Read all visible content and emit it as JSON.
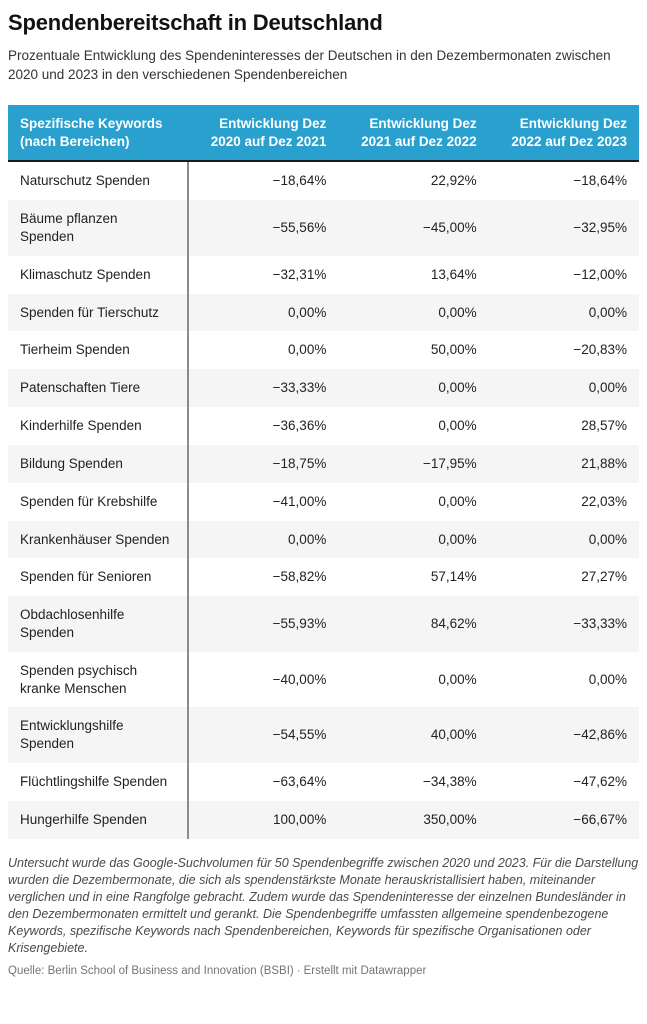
{
  "header": {
    "title": "Spendenbereitschaft in Deutschland",
    "subtitle": "Prozentuale Entwicklung des Spendeninteresses der Deutschen in den Dezembermonaten zwischen 2020 und 2023 in den verschiedenen Spendenbereichen"
  },
  "table": {
    "columns": [
      "Spezifische Keywords (nach Bereichen)",
      "Entwicklung Dez 2020 auf Dez 2021",
      "Entwicklung Dez 2021 auf Dez 2022",
      "Entwicklung Dez 2022 auf Dez 2023"
    ],
    "rows": [
      [
        "Naturschutz Spenden",
        "−18,64%",
        "22,92%",
        "−18,64%"
      ],
      [
        "Bäume pflanzen Spenden",
        "−55,56%",
        "−45,00%",
        "−32,95%"
      ],
      [
        "Klimaschutz Spenden",
        "−32,31%",
        "13,64%",
        "−12,00%"
      ],
      [
        "Spenden für Tierschutz",
        "0,00%",
        "0,00%",
        "0,00%"
      ],
      [
        "Tierheim Spenden",
        "0,00%",
        "50,00%",
        "−20,83%"
      ],
      [
        "Patenschaften Tiere",
        "−33,33%",
        "0,00%",
        "0,00%"
      ],
      [
        "Kinderhilfe Spenden",
        "−36,36%",
        "0,00%",
        "28,57%"
      ],
      [
        "Bildung Spenden",
        "−18,75%",
        "−17,95%",
        "21,88%"
      ],
      [
        "Spenden für Krebshilfe",
        "−41,00%",
        "0,00%",
        "22,03%"
      ],
      [
        "Krankenhäuser Spenden",
        "0,00%",
        "0,00%",
        "0,00%"
      ],
      [
        "Spenden für Senioren",
        "−58,82%",
        "57,14%",
        "27,27%"
      ],
      [
        "Obdachlosenhilfe Spenden",
        "−55,93%",
        "84,62%",
        "−33,33%"
      ],
      [
        "Spenden psychisch kranke Menschen",
        "−40,00%",
        "0,00%",
        "0,00%"
      ],
      [
        "Entwicklungshilfe Spenden",
        "−54,55%",
        "40,00%",
        "−42,86%"
      ],
      [
        "Flüchtlingshilfe Spenden",
        "−63,64%",
        "−34,38%",
        "−47,62%"
      ],
      [
        "Hungerhilfe Spenden",
        "100,00%",
        "350,00%",
        "−66,67%"
      ]
    ]
  },
  "footer": {
    "notes": "Untersucht wurde das Google-Suchvolumen für 50 Spendenbegriffe zwischen 2020 und 2023. Für die Darstellung wurden die Dezembermonate, die sich als spendenstärkste Monate herauskristallisiert haben, miteinander verglichen und in eine Rangfolge gebracht. Zudem wurde das Spendeninteresse der einzelnen Bundesländer in den Dezembermonaten ermittelt und gerankt. Die Spendenbegriffe umfassten allgemeine spendenbezogene Keywords, spezifische Keywords nach Spendenbereichen, Keywords für spezifische Organisationen oder Krisengebiete.",
    "source_prefix": "Quelle:",
    "source_name": "Berlin School of Business and Innovation (BSBI)",
    "separator": "·",
    "credit": "Erstellt mit Datawrapper"
  },
  "colors": {
    "header_bg": "#29a0ce",
    "header_text": "#ffffff",
    "stripe": "#f5f5f5",
    "divider": "#8c8c8c",
    "header_border": "#1a1a1a",
    "body_text": "#222222",
    "notes_text": "#494949",
    "source_text": "#757575"
  },
  "chart_data": {
    "type": "table",
    "title": "Spendenbereitschaft in Deutschland",
    "subtitle": "Prozentuale Entwicklung des Spendeninteresses der Deutschen in den Dezembermonaten zwischen 2020 und 2023 in den verschiedenen Spendenbereichen",
    "columns": [
      "Spezifische Keywords (nach Bereichen)",
      "Entwicklung Dez 2020 auf Dez 2021",
      "Entwicklung Dez 2021 auf Dez 2022",
      "Entwicklung Dez 2022 auf Dez 2023"
    ],
    "rows_percent_change": [
      {
        "keyword": "Naturschutz Spenden",
        "dez2020_2021": -18.64,
        "dez2021_2022": 22.92,
        "dez2022_2023": -18.64
      },
      {
        "keyword": "Bäume pflanzen Spenden",
        "dez2020_2021": -55.56,
        "dez2021_2022": -45.0,
        "dez2022_2023": -32.95
      },
      {
        "keyword": "Klimaschutz Spenden",
        "dez2020_2021": -32.31,
        "dez2021_2022": 13.64,
        "dez2022_2023": -12.0
      },
      {
        "keyword": "Spenden für Tierschutz",
        "dez2020_2021": 0.0,
        "dez2021_2022": 0.0,
        "dez2022_2023": 0.0
      },
      {
        "keyword": "Tierheim Spenden",
        "dez2020_2021": 0.0,
        "dez2021_2022": 50.0,
        "dez2022_2023": -20.83
      },
      {
        "keyword": "Patenschaften Tiere",
        "dez2020_2021": -33.33,
        "dez2021_2022": 0.0,
        "dez2022_2023": 0.0
      },
      {
        "keyword": "Kinderhilfe Spenden",
        "dez2020_2021": -36.36,
        "dez2021_2022": 0.0,
        "dez2022_2023": 28.57
      },
      {
        "keyword": "Bildung Spenden",
        "dez2020_2021": -18.75,
        "dez2021_2022": -17.95,
        "dez2022_2023": 21.88
      },
      {
        "keyword": "Spenden für Krebshilfe",
        "dez2020_2021": -41.0,
        "dez2021_2022": 0.0,
        "dez2022_2023": 22.03
      },
      {
        "keyword": "Krankenhäuser Spenden",
        "dez2020_2021": 0.0,
        "dez2021_2022": 0.0,
        "dez2022_2023": 0.0
      },
      {
        "keyword": "Spenden für Senioren",
        "dez2020_2021": -58.82,
        "dez2021_2022": 57.14,
        "dez2022_2023": 27.27
      },
      {
        "keyword": "Obdachlosenhilfe Spenden",
        "dez2020_2021": -55.93,
        "dez2021_2022": 84.62,
        "dez2022_2023": -33.33
      },
      {
        "keyword": "Spenden psychisch kranke Menschen",
        "dez2020_2021": -40.0,
        "dez2021_2022": 0.0,
        "dez2022_2023": 0.0
      },
      {
        "keyword": "Entwicklungshilfe Spenden",
        "dez2020_2021": -54.55,
        "dez2021_2022": 40.0,
        "dez2022_2023": -42.86
      },
      {
        "keyword": "Flüchtlingshilfe Spenden",
        "dez2020_2021": -63.64,
        "dez2021_2022": -34.38,
        "dez2022_2023": -47.62
      },
      {
        "keyword": "Hungerhilfe Spenden",
        "dez2020_2021": 100.0,
        "dez2021_2022": 350.0,
        "dez2022_2023": -66.67
      }
    ],
    "layout": {
      "zebra_stripes": true,
      "value_format": "percent, comma decimal, typographic minus",
      "value_align": "right"
    }
  }
}
